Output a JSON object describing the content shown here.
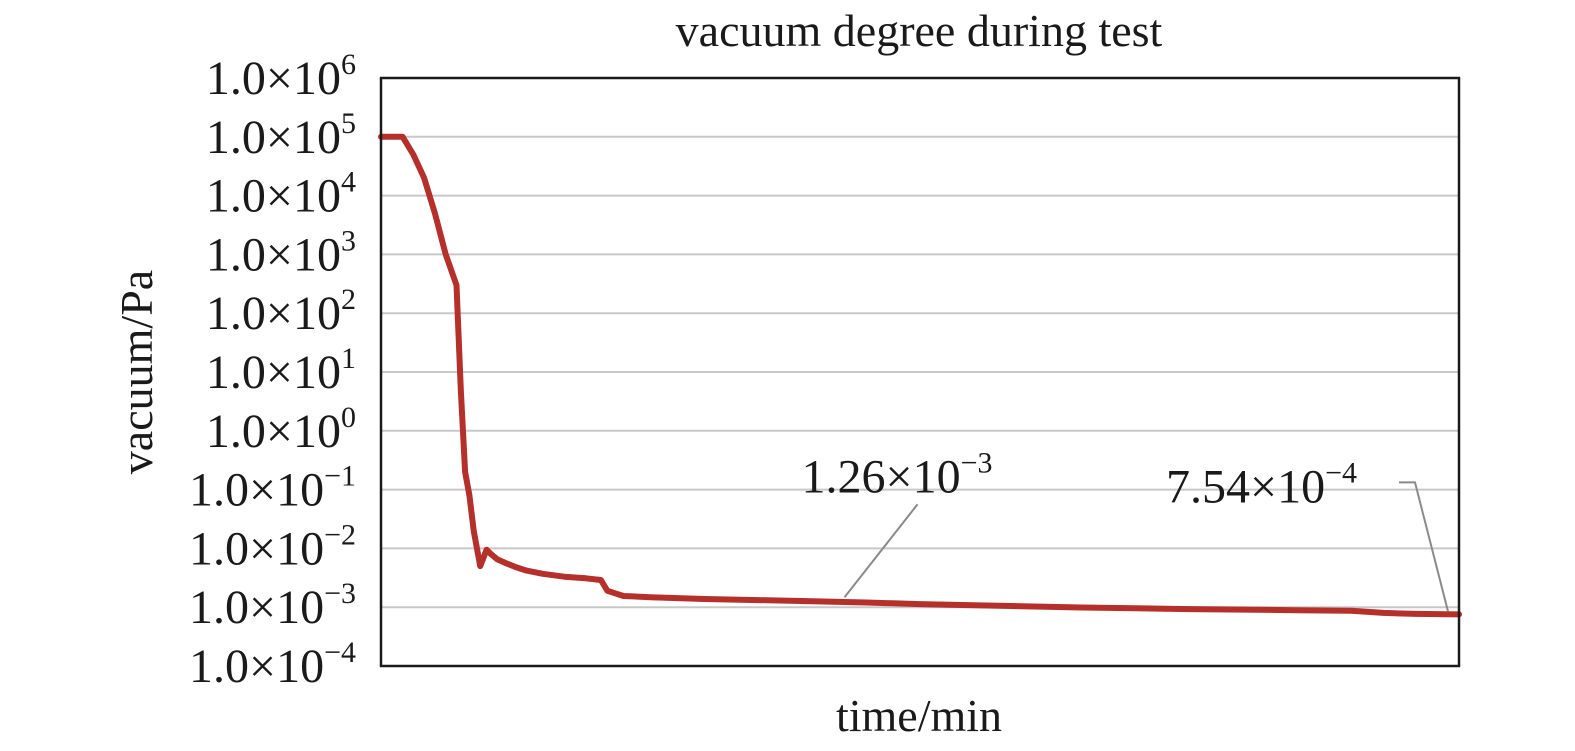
{
  "chart_data": {
    "type": "line",
    "title": "vacuum degree during test",
    "xlabel": "time/min",
    "ylabel": "vacuum/Pa",
    "yscale": "log",
    "ylim": [
      0.0001,
      1000000
    ],
    "xlim": [
      0,
      100
    ],
    "x_ticks_visible": false,
    "grid": "horizontal",
    "legend": "none",
    "line_color": "#b5302a",
    "grid_color": "#c8c8c8",
    "y_ticks": [
      {
        "value": 1000000,
        "mantissa": "1.0×10",
        "exponent": "6"
      },
      {
        "value": 100000,
        "mantissa": "1.0×10",
        "exponent": "5"
      },
      {
        "value": 10000,
        "mantissa": "1.0×10",
        "exponent": "4"
      },
      {
        "value": 1000,
        "mantissa": "1.0×10",
        "exponent": "3"
      },
      {
        "value": 100,
        "mantissa": "1.0×10",
        "exponent": "2"
      },
      {
        "value": 10,
        "mantissa": "1.0×10",
        "exponent": "1"
      },
      {
        "value": 1,
        "mantissa": "1.0×10",
        "exponent": "0"
      },
      {
        "value": 0.1,
        "mantissa": "1.0×10",
        "exponent": "−1"
      },
      {
        "value": 0.01,
        "mantissa": "1.0×10",
        "exponent": "−2"
      },
      {
        "value": 0.001,
        "mantissa": "1.0×10",
        "exponent": "−3"
      },
      {
        "value": 0.0001,
        "mantissa": "1.0×10",
        "exponent": "−4"
      }
    ],
    "series": [
      {
        "x": [
          0,
          2,
          3,
          4,
          5,
          6,
          7,
          7.4,
          7.8,
          8.2,
          8.6,
          9.2,
          9.8,
          10.2,
          10.8,
          11.5,
          12.5,
          13.5,
          15,
          17,
          19,
          20.4,
          21,
          22.5,
          25,
          30,
          35,
          40,
          45,
          50,
          55,
          60,
          65,
          70,
          75,
          80,
          85,
          90,
          93,
          96,
          100
        ],
        "y": [
          100000,
          100000,
          50000,
          20000,
          5000,
          1000,
          300,
          5,
          0.2,
          0.08,
          0.02,
          0.005,
          0.0095,
          0.008,
          0.0065,
          0.0057,
          0.0048,
          0.0042,
          0.0037,
          0.0033,
          0.0031,
          0.0029,
          0.0019,
          0.00155,
          0.00148,
          0.00138,
          0.00132,
          0.00126,
          0.0012,
          0.00113,
          0.00108,
          0.00103,
          0.00099,
          0.00096,
          0.00093,
          0.00091,
          0.00089,
          0.00087,
          0.0008,
          0.00077,
          0.000754
        ]
      }
    ],
    "annotations": [
      {
        "mantissa": "1.26×10",
        "exponent": "−3",
        "x": 43,
        "y": 0.00126
      },
      {
        "mantissa": "7.54×10",
        "exponent": "−4",
        "x": 100,
        "y": 0.000754
      }
    ]
  }
}
